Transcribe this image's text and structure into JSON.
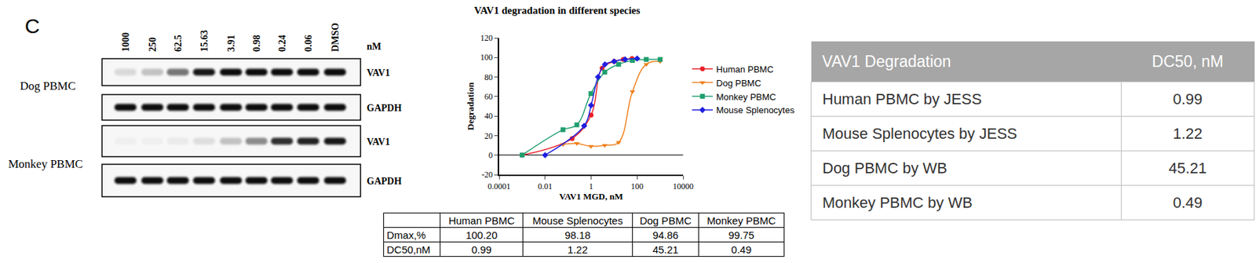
{
  "panel_label": "C",
  "blots": {
    "unit": "nM",
    "lanes": [
      "1000",
      "250",
      "62.5",
      "15.63",
      "3.91",
      "0.98",
      "0.24",
      "0.06",
      "DMSO"
    ],
    "groups": [
      {
        "label": "Dog PBMC",
        "rows": [
          {
            "label": "VAV1",
            "intensity": [
              0.12,
              0.22,
              0.55,
              0.95,
              1,
              1,
              1,
              1,
              1
            ]
          },
          {
            "label": "GAPDH",
            "intensity": [
              1,
              1,
              1,
              1,
              1,
              1,
              1,
              1,
              1
            ]
          }
        ]
      },
      {
        "label": "Monkey PBMC",
        "rows": [
          {
            "label": "VAV1",
            "intensity": [
              0.03,
              0.03,
              0.05,
              0.1,
              0.22,
              0.45,
              0.85,
              0.9,
              0.95
            ]
          },
          {
            "label": "GAPDH",
            "intensity": [
              1,
              1,
              1,
              1,
              1,
              1,
              1,
              1,
              1
            ]
          }
        ]
      }
    ]
  },
  "chart_data": {
    "type": "scatter",
    "title": "VAV1 degradation in different species",
    "x_label": "VAV1 MGD, nM",
    "y_label": "Degradation",
    "log": "x",
    "xlim": [
      0.0001,
      10000
    ],
    "xticks": [
      0.0001,
      0.01,
      1,
      100,
      10000
    ],
    "ylim": [
      -20,
      120
    ],
    "yticks": [
      -20,
      0,
      20,
      40,
      60,
      80,
      100,
      120
    ],
    "grid": false,
    "legend": "right",
    "series": [
      {
        "name": "Human PBMC",
        "color": "#e8202a",
        "marker": "circle",
        "line_style": "solid",
        "x": [
          0.001,
          0.15,
          1,
          3,
          10,
          25,
          60
        ],
        "values": [
          0,
          17,
          41,
          89,
          96,
          98,
          99
        ]
      },
      {
        "name": "Dog PBMC",
        "color": "#f07f19",
        "marker": "triangle-down",
        "line_style": "solid",
        "x": [
          0.06,
          0.24,
          0.98,
          3.91,
          15.63,
          62.5,
          250,
          1000
        ],
        "values": [
          11,
          12,
          9,
          10,
          13,
          65,
          93,
          96
        ]
      },
      {
        "name": "Monkey PBMC",
        "color": "#1f9e6e",
        "marker": "square",
        "line_style": "solid",
        "x": [
          0.001,
          0.06,
          0.24,
          0.98,
          3.91,
          15.63,
          62.5,
          250,
          1000
        ],
        "values": [
          0,
          26,
          31,
          63,
          85,
          93,
          97,
          98,
          98
        ]
      },
      {
        "name": "Mouse Splenocytes",
        "color": "#1e1ee0",
        "marker": "diamond",
        "line_style": "solid",
        "x": [
          0.01,
          0.5,
          1,
          2,
          4,
          10,
          30,
          100
        ],
        "values": [
          0,
          30,
          51,
          80,
          93,
          96,
          98,
          99
        ]
      }
    ]
  },
  "summary_table": {
    "header": [
      "",
      "Human PBMC",
      "Mouse Splenocytes",
      "Dog PBMC",
      "Monkey PBMC"
    ],
    "rows": [
      [
        "Dmax,%",
        "100.20",
        "98.18",
        "94.86",
        "99.75"
      ],
      [
        "DC50,nM",
        "0.99",
        "1.22",
        "45.21",
        "0.49"
      ]
    ]
  },
  "side_table": {
    "header": [
      "VAV1 Degradation",
      "DC50, nM"
    ],
    "rows": [
      [
        "Human PBMC by JESS",
        "0.99"
      ],
      [
        "Mouse Splenocytes by JESS",
        "1.22"
      ],
      [
        "Dog PBMC by WB",
        "45.21"
      ],
      [
        "Monkey PBMC by WB",
        "0.49"
      ]
    ]
  }
}
